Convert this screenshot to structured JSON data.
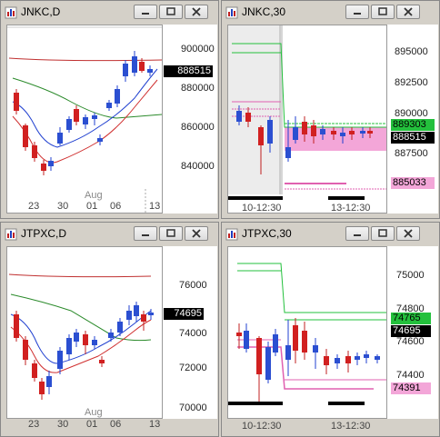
{
  "windows": [
    {
      "id": "w1",
      "title": "JNKC,D",
      "ylabels": [
        "900000",
        "880000",
        "860000",
        "840000"
      ],
      "xlabels": [
        "23",
        "30",
        "01",
        "06",
        "13"
      ],
      "month": "Aug",
      "price_last": "888515"
    },
    {
      "id": "w2",
      "title": "JNKC,30",
      "ylabels": [
        "895000",
        "892500",
        "890000",
        "887500"
      ],
      "xlabels": [
        "10-12:30",
        "13-12:30"
      ],
      "price_green": "889303",
      "price_last": "888515",
      "price_pink": "885033"
    },
    {
      "id": "w3",
      "title": "JTPXC,D",
      "ylabels": [
        "76000",
        "74000",
        "72000",
        "70000"
      ],
      "xlabels": [
        "23",
        "30",
        "01",
        "06",
        "13"
      ],
      "month": "Aug",
      "price_last": "74695"
    },
    {
      "id": "w4",
      "title": "JTPXC,30",
      "ylabels": [
        "75000",
        "74800",
        "74600",
        "74400"
      ],
      "xlabels": [
        "10-12:30",
        "13-12:30"
      ],
      "price_green": "74765",
      "price_last": "74695",
      "price_pink": "74391"
    }
  ],
  "colors": {
    "bull": "#2b4fd1",
    "bear": "#d12020",
    "ma_red": "#c03030",
    "ma_green": "#2a8a2a",
    "ma_blue": "#2040d0",
    "level_green": "#23c03c",
    "level_pink": "#e060b0",
    "zone_pink": "#f3a6d8"
  }
}
